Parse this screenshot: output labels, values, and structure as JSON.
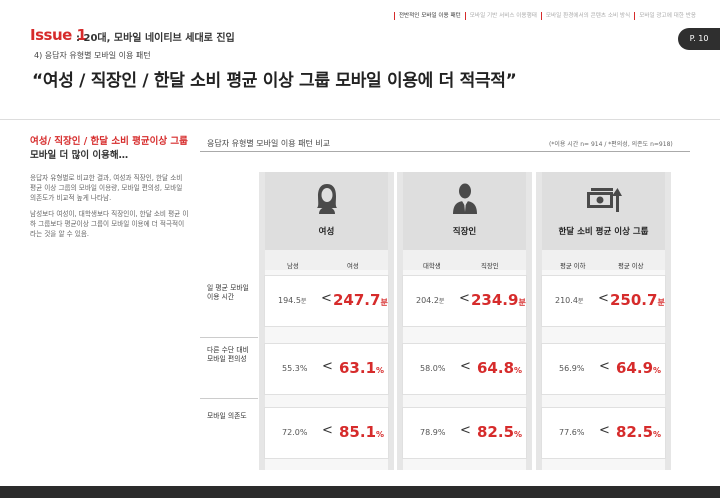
{
  "header": {
    "issue": "Issue 1",
    "issue_subtitle": ": 20대, 모바일 네이티브 세대로 진입",
    "nav": [
      "전반적인 모바일 이용 패턴",
      "모바일 기반 서비스 이용행태",
      "모바일 환경에서의 콘텐츠 소비 방식",
      "모바일 광고에 대한 반응"
    ],
    "page": "P. 10",
    "accent": "#d62b2b"
  },
  "subhead": "4) 응답자 유형별 모바일 이용 패턴",
  "headline": "“여성 / 직장인 / 한달 소비 평균 이상 그룹 모바일 이용에 더 적극적”",
  "left": {
    "title_red": "여성/ 직장인 / 한달 소비 평균이상 그룹",
    "title_dark": "모바일 더 많이 이용해…",
    "para1": "응답자 유형별로 비교한 결과, 여성과 직장인, 한달 소비 평균 이상 그룹의 모바일 이용량, 모바일 편의성, 모바일 의존도가 비교적 높게 나타남.",
    "para2": "남성보다 여성이, 대학생보다 직장인이, 한달 소비 평균 이하 그룹보다 평균이상 그룹이 모바일 이용에 더 적극적이라는 것을 알 수 있음."
  },
  "table": {
    "title": "응답자 유형별 모바일 이용 패턴 비교",
    "note": "(*이용 시간 n= 914 / *편의성, 의존도 n=918)",
    "rows": [
      "일 평균 모바일 이용 시간",
      "다른 수단 대비 모바일 편의성",
      "모바일 의존도"
    ],
    "columns": [
      {
        "label": "여성",
        "icon": "woman-icon",
        "sub_left": "남성",
        "sub_right": "여성",
        "cells": [
          {
            "low": "194.5",
            "low_unit": "분",
            "high": "247.7",
            "high_unit": "분"
          },
          {
            "low": "55.3%",
            "low_unit": "",
            "high": "63.1",
            "high_unit": "%"
          },
          {
            "low": "72.0%",
            "low_unit": "",
            "high": "85.1",
            "high_unit": "%"
          }
        ]
      },
      {
        "label": "직장인",
        "icon": "businessman-icon",
        "sub_left": "대학생",
        "sub_right": "직장인",
        "cells": [
          {
            "low": "204.2",
            "low_unit": "분",
            "high": "234.9",
            "high_unit": "분"
          },
          {
            "low": "58.0%",
            "low_unit": "",
            "high": "64.8",
            "high_unit": "%"
          },
          {
            "low": "78.9%",
            "low_unit": "",
            "high": "82.5",
            "high_unit": "%"
          }
        ]
      },
      {
        "label": "한달 소비 평균 이상 그룹",
        "icon": "money-up-icon",
        "sub_left": "평균 이하",
        "sub_right": "평균 이상",
        "cells": [
          {
            "low": "210.4",
            "low_unit": "분",
            "high": "250.7",
            "high_unit": "분"
          },
          {
            "low": "56.9%",
            "low_unit": "",
            "high": "64.9",
            "high_unit": "%"
          },
          {
            "low": "77.6%",
            "low_unit": "",
            "high": "82.5",
            "high_unit": "%"
          }
        ]
      }
    ],
    "comparator": "<"
  }
}
